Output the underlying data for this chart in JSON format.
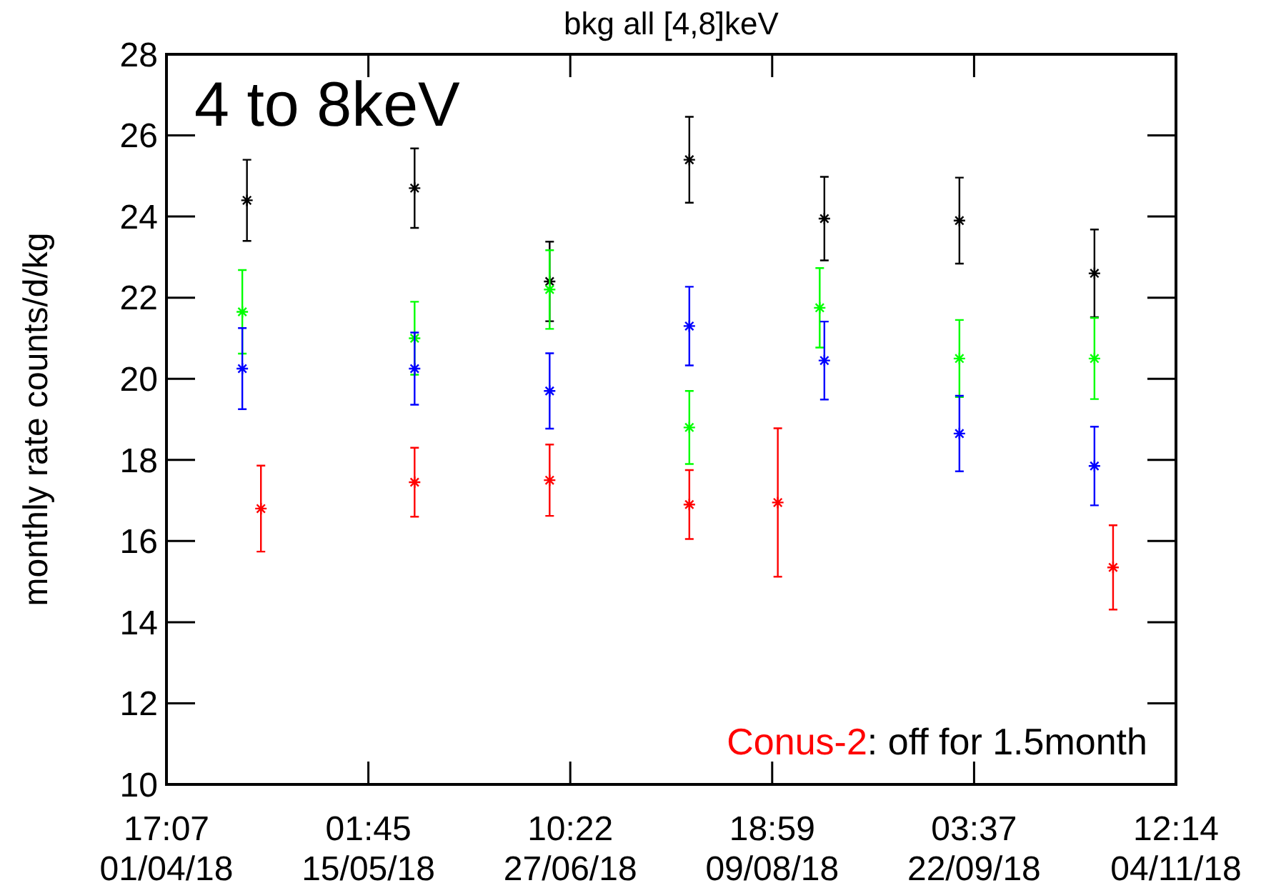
{
  "chart_data": {
    "type": "scatter",
    "title": "bkg all [4,8]keV",
    "ylabel": "monthly rate counts/d/kg",
    "annotations": [
      "4 to 8keV",
      "Conus-2",
      ": off for 1.5month"
    ],
    "xlim": [
      "2018-04-01T17:07",
      "2018-11-04T12:14"
    ],
    "xticks": [
      {
        "value": "2018-04-01T17:07",
        "label": "17:07\n01/04/18"
      },
      {
        "value": "2018-05-15T01:45",
        "label": "01:45\n15/05/18"
      },
      {
        "value": "2018-06-27T10:22",
        "label": "10:22\n27/06/18"
      },
      {
        "value": "2018-08-09T18:59",
        "label": "18:59\n09/08/18"
      },
      {
        "value": "2018-09-22T03:37",
        "label": "03:37\n22/09/18"
      },
      {
        "value": "2018-11-04T12:14",
        "label": "12:14\n04/11/18"
      }
    ],
    "ylim": [
      10,
      28
    ],
    "yticks": [
      10,
      12,
      14,
      16,
      18,
      20,
      22,
      24,
      26,
      28
    ],
    "grid": false,
    "marker": "cross",
    "series": [
      {
        "color": "#000000",
        "x": [
          "2018-04-19",
          "2018-05-25",
          "2018-06-23",
          "2018-07-23",
          "2018-08-21",
          "2018-09-19",
          "2018-10-18"
        ],
        "values": [
          24.4,
          24.7,
          22.4,
          25.4,
          23.95,
          23.9,
          22.6
        ],
        "errors": [
          1.0,
          0.98,
          0.98,
          1.06,
          1.03,
          1.06,
          1.08
        ]
      },
      {
        "color": "#00ff00",
        "x": [
          "2018-04-18",
          "2018-05-25",
          "2018-06-23",
          "2018-07-23",
          "2018-08-20",
          "2018-09-19",
          "2018-10-18"
        ],
        "values": [
          21.65,
          21.0,
          22.2,
          18.8,
          21.75,
          20.5,
          20.5
        ],
        "errors": [
          1.03,
          0.9,
          0.97,
          0.9,
          0.98,
          0.95,
          1.0
        ]
      },
      {
        "color": "#0000ff",
        "x": [
          "2018-04-18",
          "2018-05-25",
          "2018-06-23",
          "2018-07-23",
          "2018-08-21",
          "2018-09-19",
          "2018-10-18"
        ],
        "values": [
          20.25,
          20.25,
          19.7,
          21.3,
          20.45,
          18.65,
          17.85
        ],
        "errors": [
          1.0,
          0.89,
          0.93,
          0.97,
          0.96,
          0.93,
          0.97
        ]
      },
      {
        "color": "#ff0000",
        "x": [
          "2018-04-22",
          "2018-05-25",
          "2018-06-23",
          "2018-07-23",
          "2018-08-11",
          "2018-10-22"
        ],
        "values": [
          16.8,
          17.45,
          17.5,
          16.9,
          16.95,
          15.35
        ],
        "errors": [
          1.06,
          0.85,
          0.88,
          0.85,
          1.83,
          1.04
        ]
      }
    ]
  }
}
